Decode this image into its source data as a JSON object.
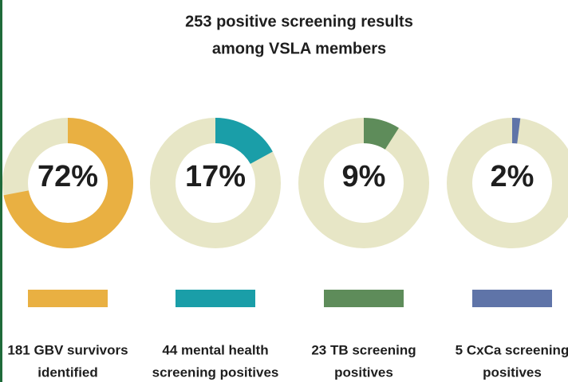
{
  "chart_data": {
    "type": "donut",
    "title": [
      "253 positive screening results",
      "among VSLA members"
    ],
    "categories": [
      [
        "181 GBV survivors",
        "identified"
      ],
      [
        "44 mental health",
        "screening positives"
      ],
      [
        "23 TB screening",
        "positives"
      ],
      [
        "5 CxCa screening",
        "positives"
      ]
    ],
    "values": [
      72,
      17,
      9,
      2
    ],
    "value_labels": [
      "72%",
      "17%",
      "9%",
      "2%"
    ],
    "colors": [
      "#e9b042",
      "#1a9ea8",
      "#5e8c5a",
      "#5f74a8"
    ],
    "track_color": "#e7e6c6"
  }
}
